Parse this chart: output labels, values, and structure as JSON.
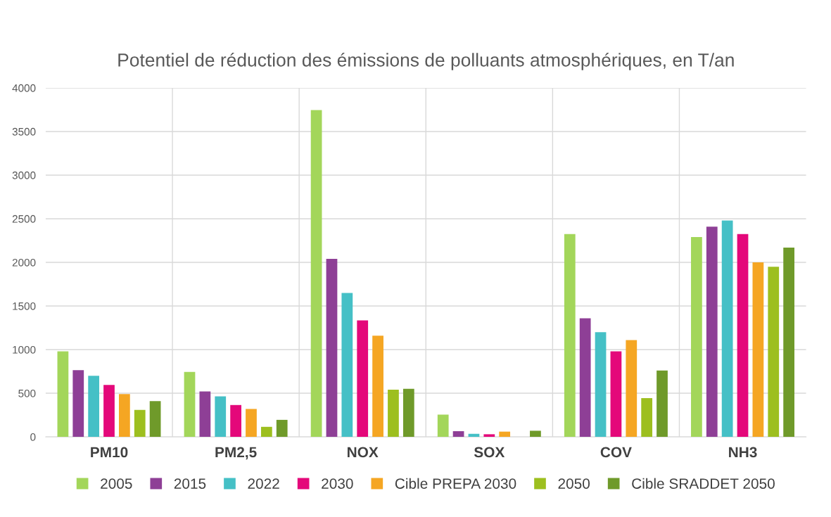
{
  "chart_data": {
    "type": "bar",
    "title": "Potentiel de réduction des émissions de polluants atmosphériques, en T/an",
    "categories": [
      "PM10",
      "PM2,5",
      "NOX",
      "SOX",
      "COV",
      "NH3"
    ],
    "series": [
      {
        "name": "2005",
        "color": "#a3d65a",
        "values": [
          980,
          745,
          3745,
          255,
          2325,
          2290
        ]
      },
      {
        "name": "2015",
        "color": "#8e3f96",
        "values": [
          765,
          520,
          2040,
          65,
          1360,
          2410
        ]
      },
      {
        "name": "2022",
        "color": "#45c0c6",
        "values": [
          700,
          465,
          1650,
          35,
          1200,
          2480
        ]
      },
      {
        "name": "2030",
        "color": "#e4087a",
        "values": [
          595,
          365,
          1335,
          30,
          980,
          2325
        ]
      },
      {
        "name": "Cible PREPA 2030",
        "color": "#f5a623",
        "values": [
          490,
          320,
          1160,
          60,
          1110,
          2000
        ]
      },
      {
        "name": "2050",
        "color": "#9dbf1f",
        "values": [
          310,
          115,
          540,
          0,
          445,
          1950
        ]
      },
      {
        "name": "Cible SRADDET 2050",
        "color": "#6f9a2a",
        "values": [
          410,
          195,
          550,
          70,
          760,
          2170
        ]
      }
    ],
    "ylim": [
      0,
      4000
    ],
    "yticks": [
      0,
      500,
      1000,
      1500,
      2000,
      2500,
      3000,
      3500,
      4000
    ],
    "grid": true,
    "legend": "bottom"
  }
}
